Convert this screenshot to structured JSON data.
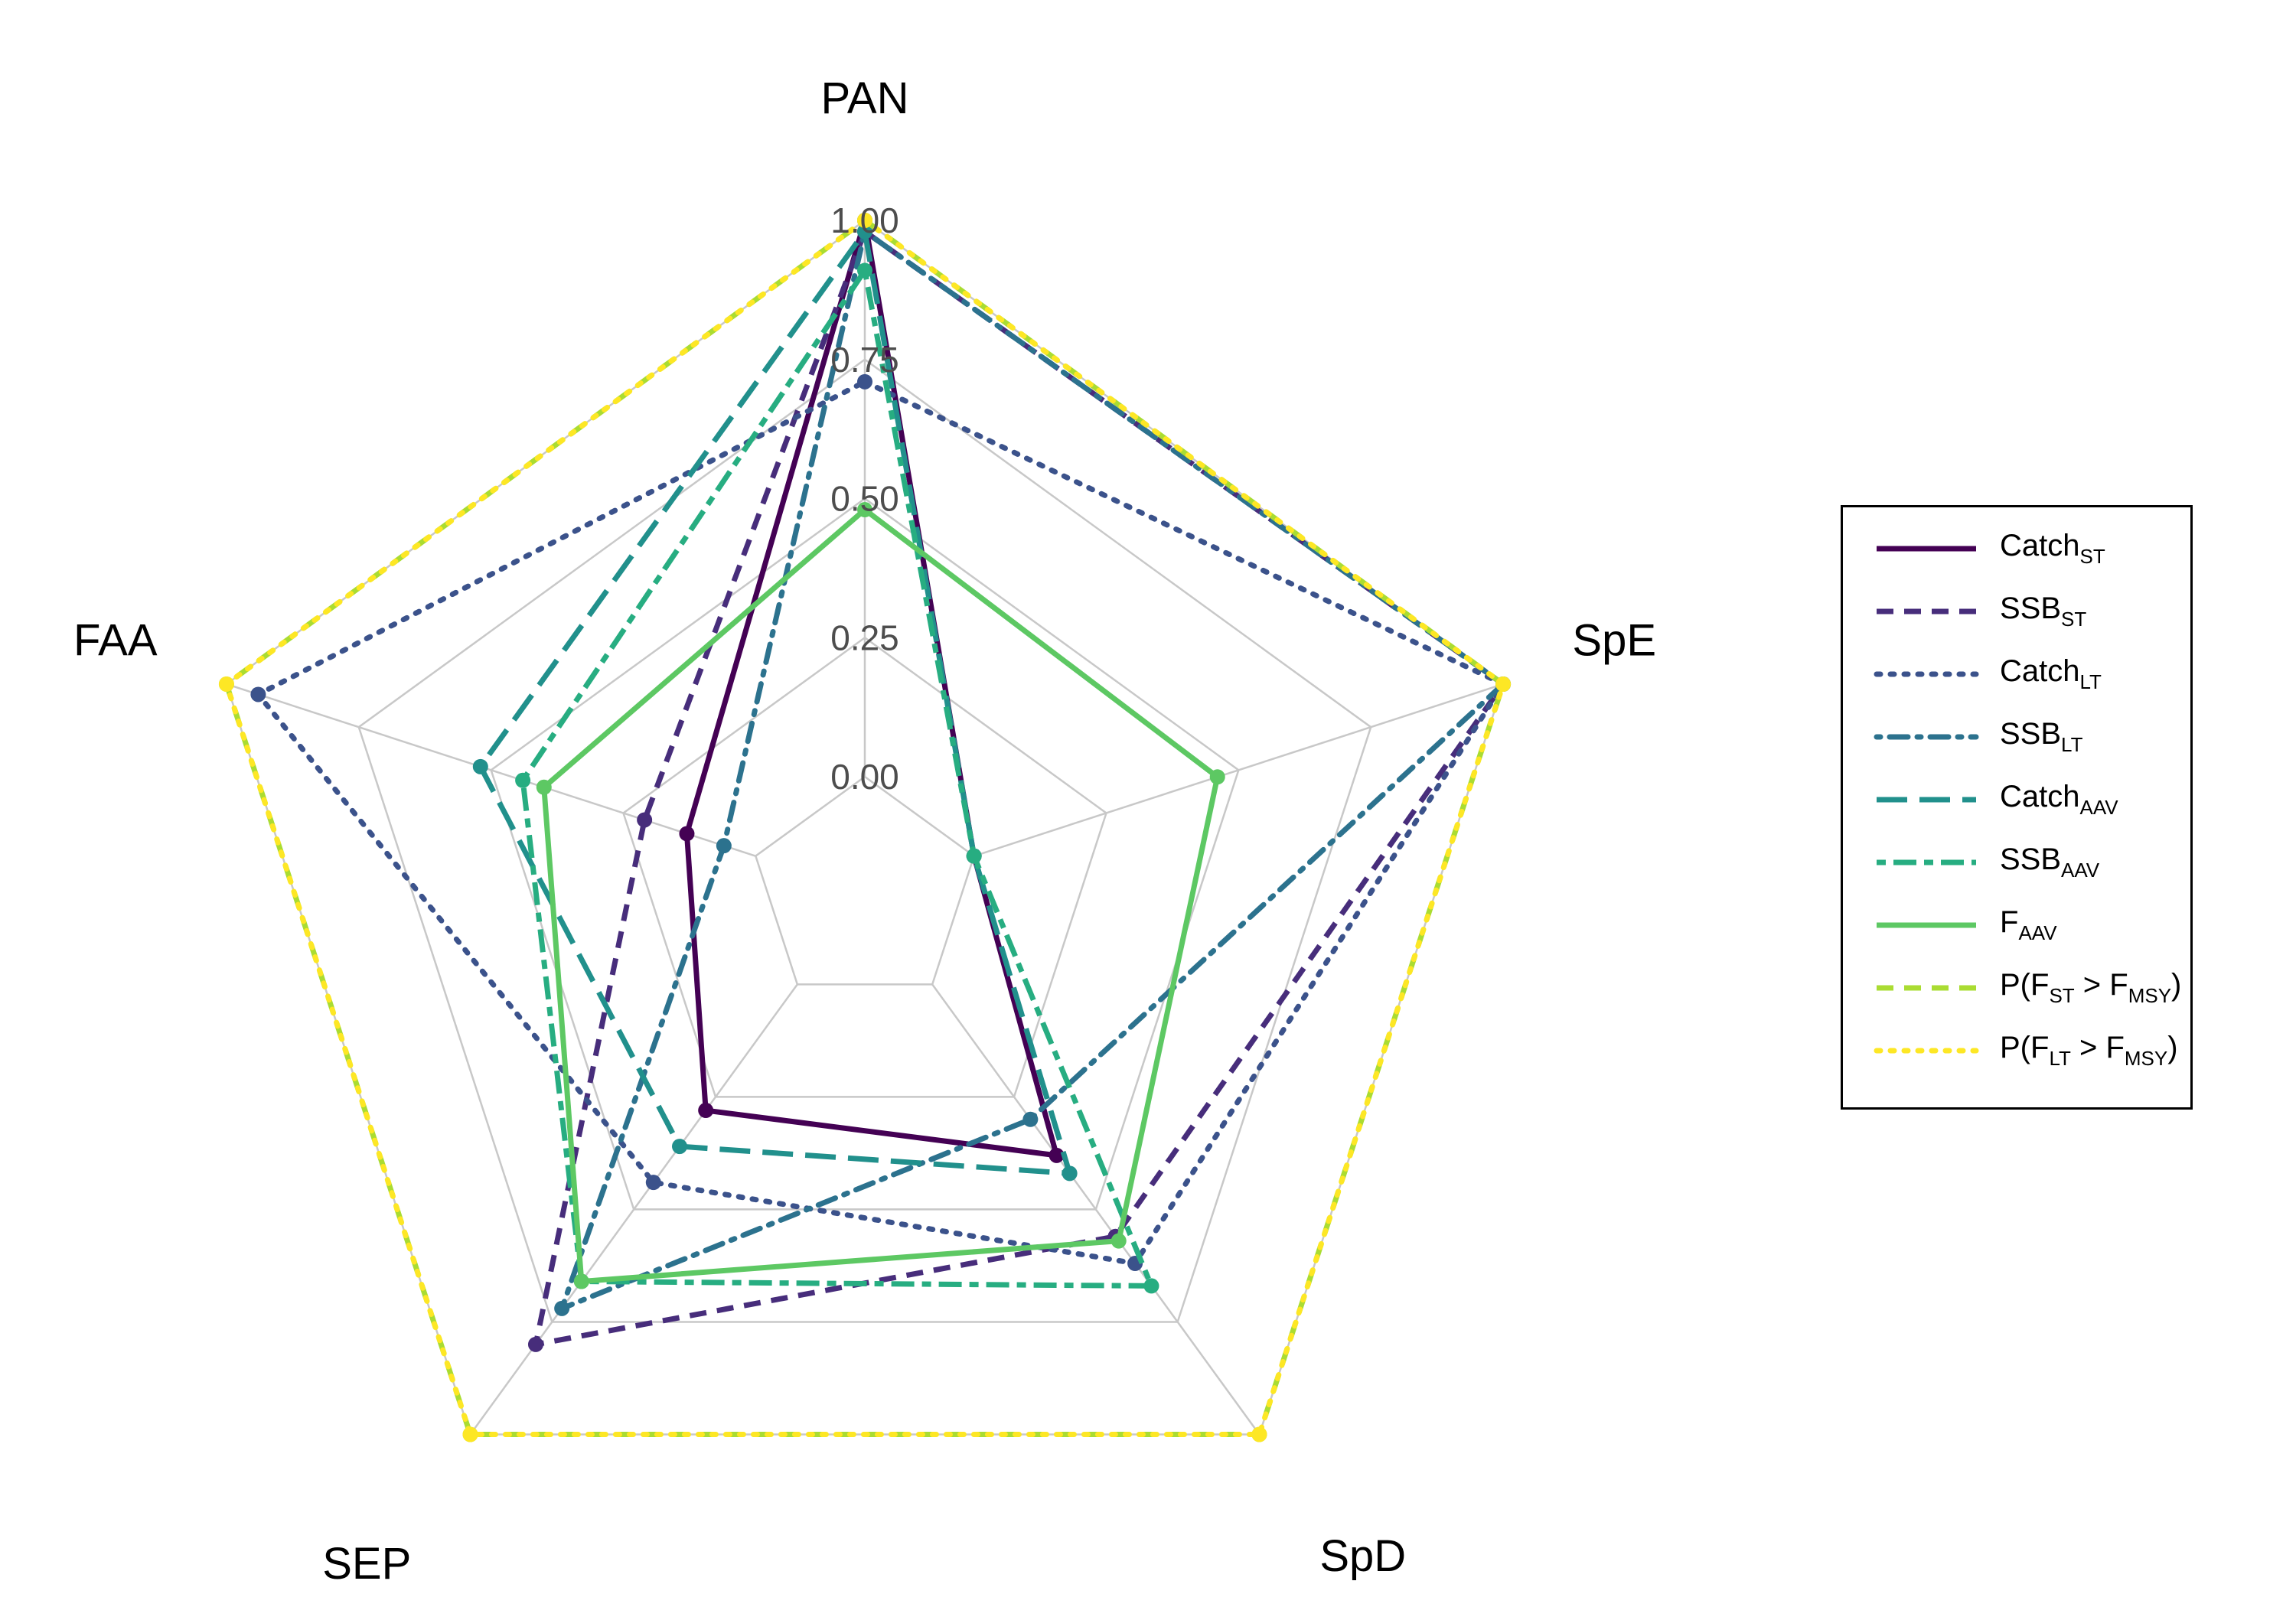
{
  "chart_data": {
    "type": "radar",
    "axes": [
      "PAN",
      "SpE",
      "SpD",
      "SEP",
      "FAA"
    ],
    "ticks": [
      "0.00",
      "0.25",
      "0.50",
      "0.75",
      "1.00"
    ],
    "range": [
      0,
      1
    ],
    "grid": true,
    "legend_position": "right",
    "series": [
      {
        "key": "catch_st",
        "name": "Catch",
        "sub": "ST",
        "color": "#440154",
        "dash": "solid",
        "values": [
          1.0,
          0.0,
          0.38,
          0.28,
          0.13
        ]
      },
      {
        "key": "ssb_st",
        "name": "SSB",
        "sub": "ST",
        "color": "#472D7B",
        "dash": "dashed",
        "values": [
          0.98,
          1.0,
          0.56,
          0.8,
          0.21
        ]
      },
      {
        "key": "catch_lt",
        "name": "Catch",
        "sub": "LT",
        "color": "#3B528B",
        "dash": "dotted",
        "values": [
          0.71,
          1.0,
          0.62,
          0.44,
          0.94
        ]
      },
      {
        "key": "ssb_lt",
        "name": "SSB",
        "sub": "LT",
        "color": "#2C728E",
        "dash": "dotdash",
        "values": [
          0.98,
          1.0,
          0.3,
          0.72,
          0.06
        ]
      },
      {
        "key": "catch_aav",
        "name": "Catch",
        "sub": "AAV",
        "color": "#21908C",
        "dash": "longdash",
        "values": [
          0.98,
          0.0,
          0.42,
          0.36,
          0.52
        ]
      },
      {
        "key": "ssb_aav",
        "name": "SSB",
        "sub": "AAV",
        "color": "#27AD81",
        "dash": "twodash",
        "values": [
          0.91,
          0.0,
          0.67,
          0.66,
          0.44
        ]
      },
      {
        "key": "f_aav",
        "name": "F",
        "sub": "AAV",
        "color": "#5DC863",
        "dash": "solid",
        "values": [
          0.48,
          0.46,
          0.57,
          0.66,
          0.4
        ]
      },
      {
        "key": "p_fst",
        "name": "P(F",
        "sub": "ST",
        "mid": " > F",
        "sub2": "MSY",
        "tail": ")",
        "color": "#AADC32",
        "dash": "dashed",
        "values": [
          1.0,
          1.0,
          1.0,
          1.0,
          1.0
        ]
      },
      {
        "key": "p_flt",
        "name": "P(F",
        "sub": "LT",
        "mid": " > F",
        "sub2": "MSY",
        "tail": ")",
        "color": "#FDE725",
        "dash": "dotted",
        "values": [
          1.0,
          1.0,
          1.0,
          1.0,
          1.0
        ]
      }
    ]
  }
}
